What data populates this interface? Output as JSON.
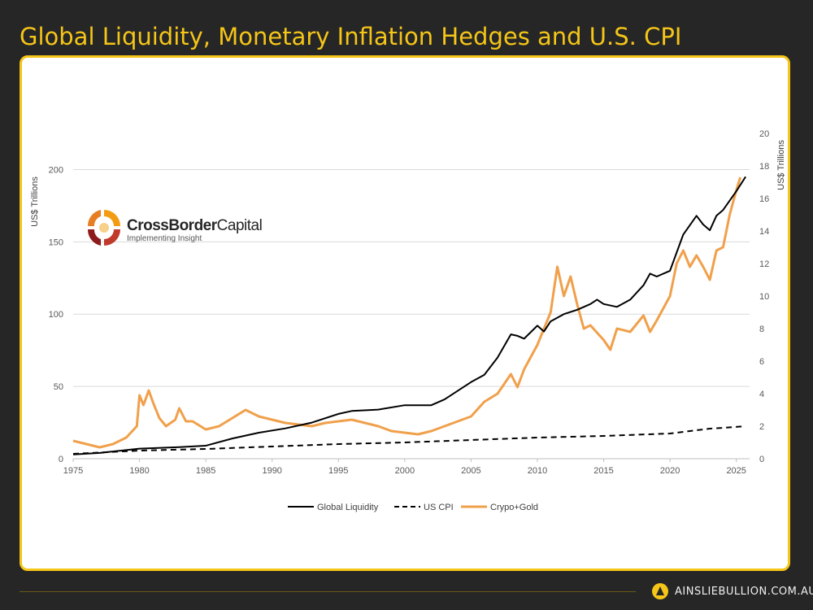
{
  "header": {
    "title": "Global Liquidity, Monetary Inflation Hedges and U.S. CPI"
  },
  "logo": {
    "name_bold": "CrossBorder",
    "name_light": "Capital",
    "tagline": "Implementing Insight"
  },
  "footer": {
    "brand": "AINSLIEBULLION.COM.AU"
  },
  "colors": {
    "accent": "#f5c518",
    "liquidity": "#000000",
    "cpi": "#000000",
    "crypto_gold": "#f0a04b"
  },
  "chart_data": {
    "type": "line",
    "title": "",
    "xlim": [
      1975,
      2026
    ],
    "x_ticks": [
      "1975",
      "1980",
      "1985",
      "1990",
      "1995",
      "2000",
      "2005",
      "2010",
      "2015",
      "2020",
      "2025"
    ],
    "y_left": {
      "label": "US$ Trillions",
      "lim": [
        0,
        225
      ],
      "ticks": [
        "0",
        "50",
        "100",
        "150",
        "200"
      ]
    },
    "y_right": {
      "label": "US$ Trillions",
      "lim": [
        0,
        20
      ],
      "ticks": [
        "0",
        "2",
        "4",
        "6",
        "8",
        "10",
        "12",
        "14",
        "16",
        "18",
        "20"
      ]
    },
    "grid": true,
    "legend_position": "bottom",
    "series": [
      {
        "name": "Global Liquidity",
        "axis": "left",
        "style": "solid",
        "points": [
          [
            1975,
            3
          ],
          [
            1977,
            4
          ],
          [
            1980,
            7
          ],
          [
            1983,
            8
          ],
          [
            1985,
            9
          ],
          [
            1987,
            14
          ],
          [
            1989,
            18
          ],
          [
            1991,
            21
          ],
          [
            1993,
            25
          ],
          [
            1995,
            31
          ],
          [
            1996,
            33
          ],
          [
            1998,
            34
          ],
          [
            2000,
            37
          ],
          [
            2002,
            37
          ],
          [
            2003,
            41
          ],
          [
            2005,
            53
          ],
          [
            2006,
            58
          ],
          [
            2007,
            70
          ],
          [
            2008,
            86
          ],
          [
            2008.5,
            85
          ],
          [
            2009,
            83
          ],
          [
            2010,
            92
          ],
          [
            2010.5,
            88
          ],
          [
            2011,
            95
          ],
          [
            2012,
            100
          ],
          [
            2013,
            103
          ],
          [
            2014,
            107
          ],
          [
            2014.5,
            110
          ],
          [
            2015,
            107
          ],
          [
            2016,
            105
          ],
          [
            2017,
            110
          ],
          [
            2018,
            120
          ],
          [
            2018.5,
            128
          ],
          [
            2019,
            126
          ],
          [
            2020,
            130
          ],
          [
            2021,
            155
          ],
          [
            2022,
            168
          ],
          [
            2022.5,
            162
          ],
          [
            2023,
            158
          ],
          [
            2023.5,
            168
          ],
          [
            2024,
            172
          ],
          [
            2025,
            185
          ],
          [
            2025.7,
            195
          ]
        ]
      },
      {
        "name": "US CPI",
        "axis": "right",
        "style": "dashed",
        "points": [
          [
            1975,
            0.3
          ],
          [
            1980,
            0.5
          ],
          [
            1985,
            0.6
          ],
          [
            1990,
            0.75
          ],
          [
            1995,
            0.9
          ],
          [
            2000,
            1.0
          ],
          [
            2005,
            1.15
          ],
          [
            2010,
            1.3
          ],
          [
            2015,
            1.4
          ],
          [
            2020,
            1.55
          ],
          [
            2021,
            1.65
          ],
          [
            2022,
            1.75
          ],
          [
            2023,
            1.85
          ],
          [
            2024,
            1.9
          ],
          [
            2025.7,
            2.0
          ]
        ]
      },
      {
        "name": "Crypo+Gold",
        "axis": "right",
        "style": "solid",
        "points": [
          [
            1975,
            1.1
          ],
          [
            1976,
            0.9
          ],
          [
            1977,
            0.7
          ],
          [
            1978,
            0.9
          ],
          [
            1979,
            1.3
          ],
          [
            1979.8,
            2.0
          ],
          [
            1980,
            3.9
          ],
          [
            1980.3,
            3.3
          ],
          [
            1980.7,
            4.2
          ],
          [
            1981,
            3.5
          ],
          [
            1981.5,
            2.5
          ],
          [
            1982,
            2.0
          ],
          [
            1982.7,
            2.4
          ],
          [
            1983,
            3.1
          ],
          [
            1983.5,
            2.3
          ],
          [
            1984,
            2.3
          ],
          [
            1985,
            1.8
          ],
          [
            1986,
            2.0
          ],
          [
            1987,
            2.5
          ],
          [
            1988,
            3.0
          ],
          [
            1989,
            2.6
          ],
          [
            1990,
            2.4
          ],
          [
            1991,
            2.2
          ],
          [
            1992,
            2.1
          ],
          [
            1993,
            2.0
          ],
          [
            1994,
            2.2
          ],
          [
            1995,
            2.3
          ],
          [
            1996,
            2.4
          ],
          [
            1997,
            2.2
          ],
          [
            1998,
            2.0
          ],
          [
            1999,
            1.7
          ],
          [
            2000,
            1.6
          ],
          [
            2001,
            1.5
          ],
          [
            2002,
            1.7
          ],
          [
            2003,
            2.0
          ],
          [
            2004,
            2.3
          ],
          [
            2005,
            2.6
          ],
          [
            2006,
            3.5
          ],
          [
            2007,
            4.0
          ],
          [
            2008,
            5.2
          ],
          [
            2008.5,
            4.4
          ],
          [
            2009,
            5.5
          ],
          [
            2010,
            7.0
          ],
          [
            2011,
            9.0
          ],
          [
            2011.5,
            11.8
          ],
          [
            2012,
            10.0
          ],
          [
            2012.5,
            11.2
          ],
          [
            2013,
            9.5
          ],
          [
            2013.5,
            8.0
          ],
          [
            2014,
            8.2
          ],
          [
            2015,
            7.3
          ],
          [
            2015.5,
            6.7
          ],
          [
            2016,
            8.0
          ],
          [
            2017,
            7.8
          ],
          [
            2018,
            8.8
          ],
          [
            2018.5,
            7.8
          ],
          [
            2019,
            8.5
          ],
          [
            2020,
            10.0
          ],
          [
            2020.5,
            12.0
          ],
          [
            2021,
            12.8
          ],
          [
            2021.5,
            11.8
          ],
          [
            2022,
            12.5
          ],
          [
            2022.5,
            11.8
          ],
          [
            2023,
            11.0
          ],
          [
            2023.5,
            12.8
          ],
          [
            2024,
            13.0
          ],
          [
            2024.5,
            15.0
          ],
          [
            2025,
            16.5
          ],
          [
            2025.3,
            17.3
          ]
        ]
      }
    ]
  }
}
